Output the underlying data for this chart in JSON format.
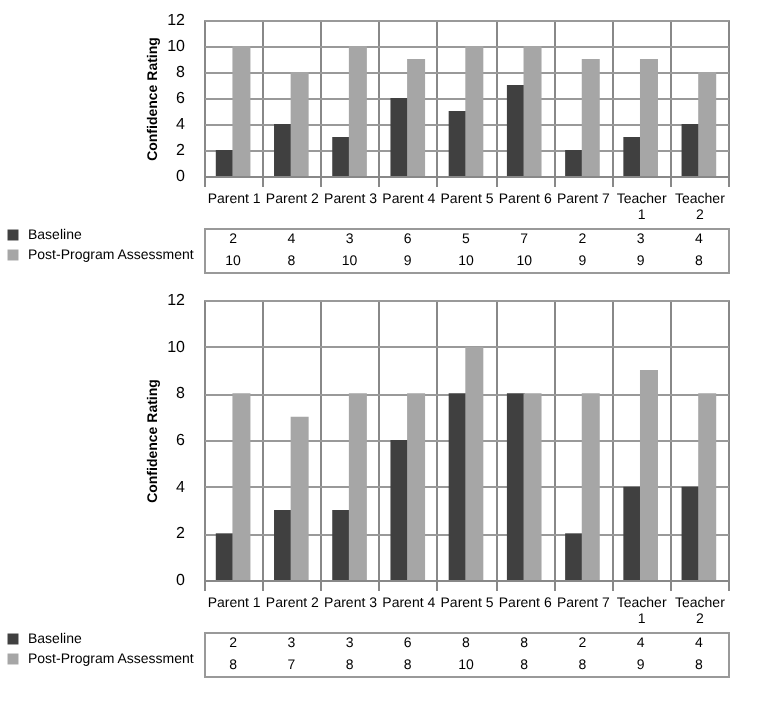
{
  "chart_data": [
    {
      "type": "bar",
      "ylabel": "Confidence Rating",
      "categories": [
        "Parent 1",
        "Parent 2",
        "Parent 3",
        "Parent 4",
        "Parent 5",
        "Parent 6",
        "Parent 7",
        "Teacher 1",
        "Teacher 2"
      ],
      "series": [
        {
          "name": "Baseline",
          "color": "#404040",
          "values": [
            2,
            4,
            3,
            6,
            5,
            7,
            2,
            3,
            4
          ]
        },
        {
          "name": "Post-Program Assessment",
          "color": "#a6a6a6",
          "values": [
            10,
            8,
            10,
            9,
            10,
            10,
            9,
            9,
            8
          ]
        }
      ],
      "ylim": [
        0,
        12
      ],
      "yticks": [
        0,
        2,
        4,
        6,
        8,
        10,
        12
      ],
      "grid": "y",
      "legend": "bottom left",
      "data_labels": true
    },
    {
      "type": "bar",
      "ylabel": "Confidence Rating",
      "categories": [
        "Parent 1",
        "Parent 2",
        "Parent 3",
        "Parent 4",
        "Parent 5",
        "Parent 6",
        "Parent 7",
        "Teacher 1",
        "Teacher 2"
      ],
      "series": [
        {
          "name": "Baseline",
          "color": "#404040",
          "values": [
            2,
            3,
            3,
            6,
            8,
            8,
            2,
            4,
            4
          ]
        },
        {
          "name": "Post-Program Assessment",
          "color": "#a6a6a6",
          "values": [
            8,
            7,
            8,
            8,
            10,
            8,
            8,
            9,
            8
          ]
        }
      ],
      "ylim": [
        0,
        12
      ],
      "yticks": [
        0,
        2,
        4,
        6,
        8,
        10,
        12
      ],
      "grid": "y",
      "legend": "bottom left",
      "data_labels": true
    }
  ]
}
